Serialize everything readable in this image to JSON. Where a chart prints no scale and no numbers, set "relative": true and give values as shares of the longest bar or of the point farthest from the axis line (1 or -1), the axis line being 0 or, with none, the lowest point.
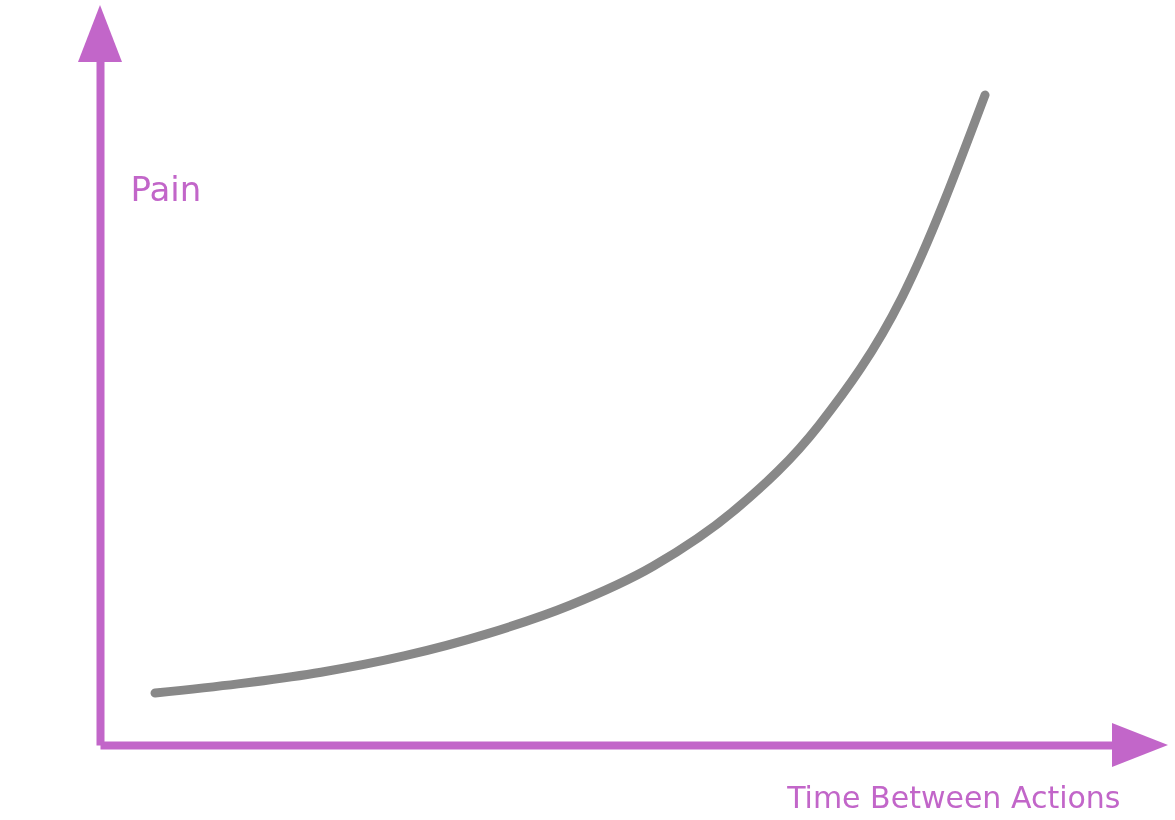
{
  "chart_data": {
    "type": "line",
    "xlabel": "Time Between Actions",
    "ylabel": "Pain",
    "relative": true,
    "categories": [
      null,
      null,
      null,
      null,
      null,
      null,
      null,
      null,
      null,
      null,
      null
    ],
    "series": [
      {
        "color": "#888888",
        "values": [
          0.08,
          0.094,
          0.112,
          0.137,
          0.171,
          0.215,
          0.275,
          0.363,
          0.492,
          0.689,
          1
        ]
      }
    ]
  }
}
